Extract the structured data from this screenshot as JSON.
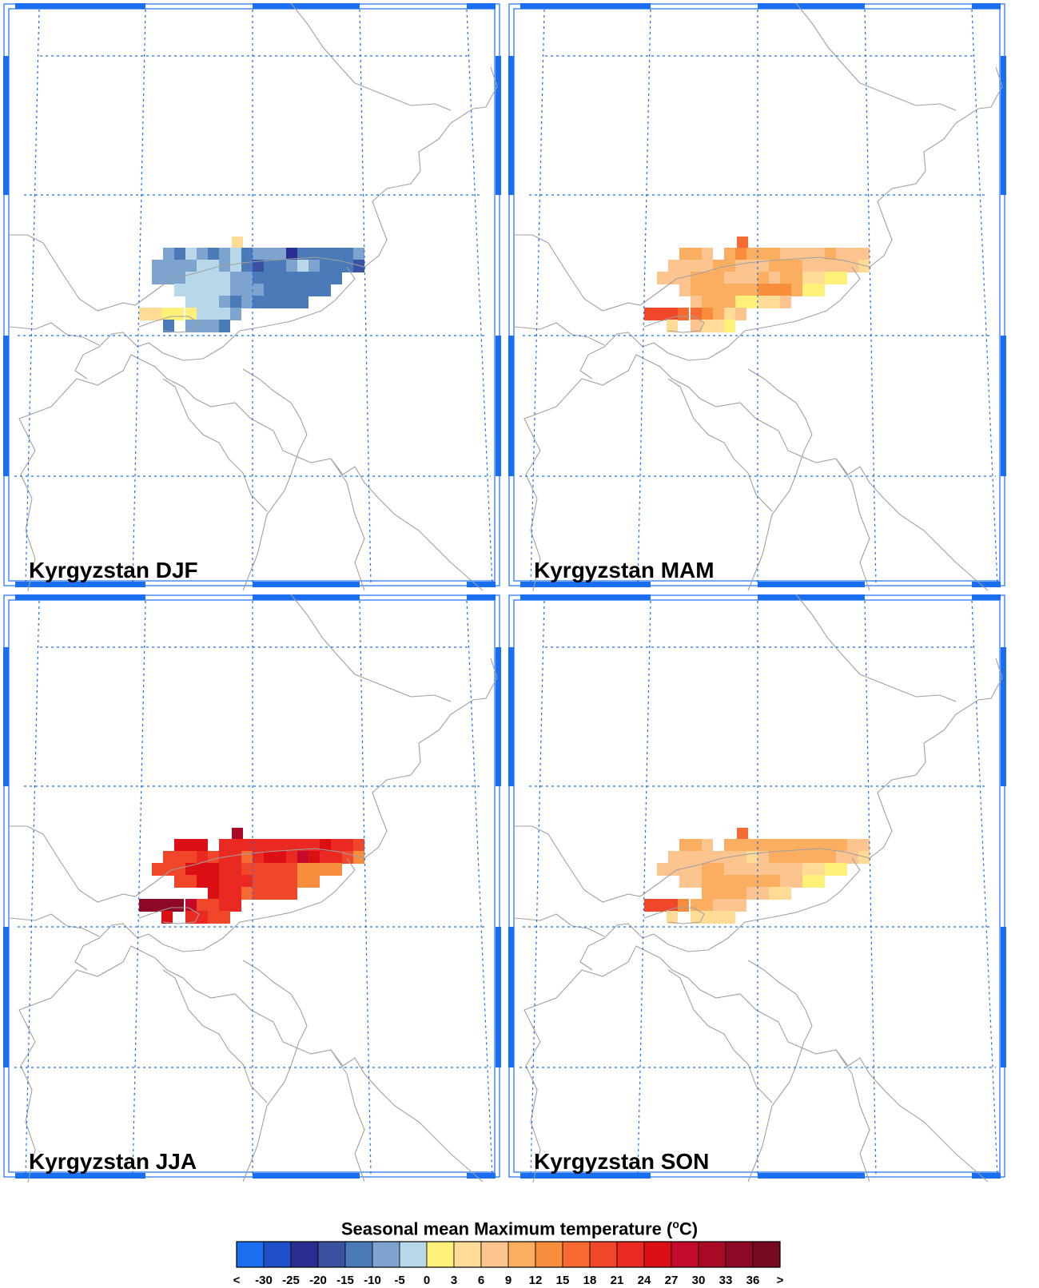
{
  "panels": [
    {
      "id": "djf",
      "title": "Kyrgyzstan DJF"
    },
    {
      "id": "mam",
      "title": "Kyrgyzstan MAM"
    },
    {
      "id": "jja",
      "title": "Kyrgyzstan JJA"
    },
    {
      "id": "son",
      "title": "Kyrgyzstan SON"
    }
  ],
  "legend": {
    "title_prefix": "Seasonal mean Maximum temperature (",
    "title_sup": "o",
    "title_suffix": "C)",
    "labels": [
      "<",
      "-30",
      "-25",
      "-20",
      "-15",
      "-10",
      "-5",
      "0",
      "3",
      "6",
      "9",
      "12",
      "15",
      "18",
      "21",
      "24",
      "27",
      "30",
      "33",
      "36",
      ">"
    ],
    "colors": [
      "#1a6ef0",
      "#1f4fc8",
      "#2a2e8e",
      "#3a52a0",
      "#4a7ab8",
      "#7ca4cf",
      "#b8d8ea",
      "#fff07a",
      "#ffdb96",
      "#fcc48e",
      "#fbae60",
      "#f88d3c",
      "#f76a32",
      "#f0462a",
      "#ea2a22",
      "#dc1014",
      "#c40a2a",
      "#a80a26",
      "#8c0826",
      "#760a20"
    ]
  },
  "colors": {
    "frame": "#1a6ef0",
    "graticule": "#1a6ef0",
    "borders": "#a0a0a0"
  }
}
